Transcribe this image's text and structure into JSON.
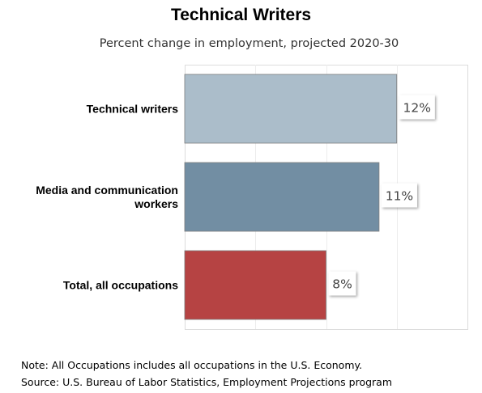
{
  "chart_data": {
    "type": "bar",
    "orientation": "horizontal",
    "title": "Technical Writers",
    "subtitle": "Percent change in employment, projected 2020-30",
    "categories": [
      [
        "Technical writers"
      ],
      [
        "Media and communication",
        "workers"
      ],
      [
        "Total, all occupations"
      ]
    ],
    "values": [
      12,
      11,
      8
    ],
    "value_labels": [
      "12%",
      "11%",
      "8%"
    ],
    "colors": [
      "#abbdca",
      "#728ea3",
      "#b64343"
    ],
    "xlim": [
      0,
      16
    ],
    "grid": true,
    "legend": "none"
  },
  "footer": {
    "note": "Note: All Occupations includes all occupations in the U.S. Economy.",
    "source": "Source: U.S. Bureau of Labor Statistics, Employment Projections program"
  }
}
